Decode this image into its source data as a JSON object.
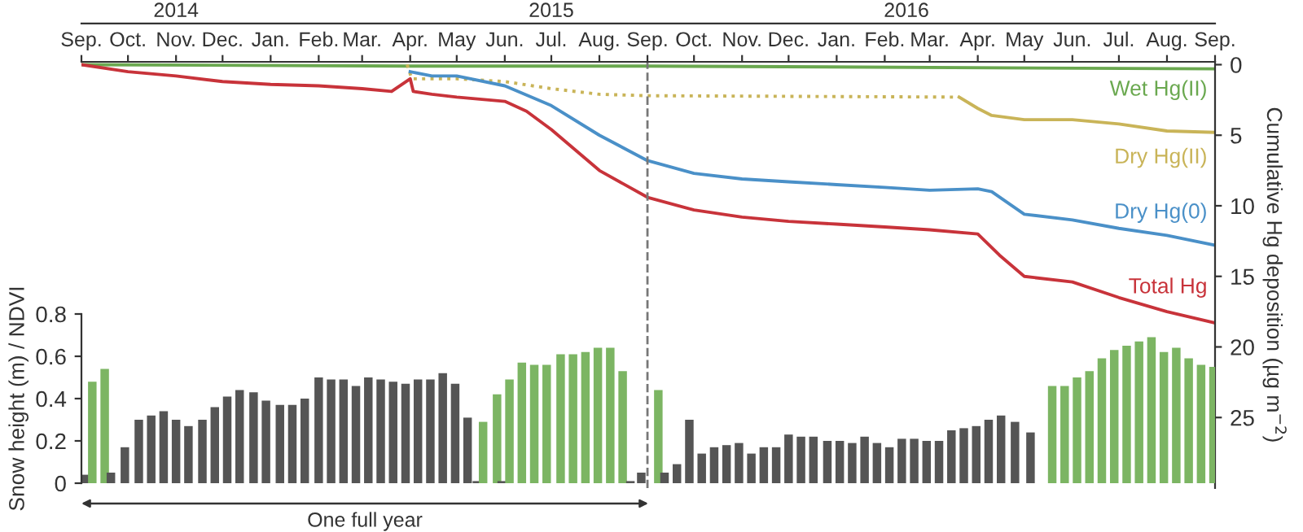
{
  "chart_data": [
    {
      "type": "line",
      "ylabel": "Cumulative Hg deposition (µg m$^{−2}$)",
      "xlim": [
        "2014-09-01",
        "2016-09-01"
      ],
      "ylim": [
        30,
        -0.2
      ],
      "yticks": [
        0,
        5,
        10,
        15,
        20,
        25
      ],
      "xticks": [
        {
          "value": "2014-09-01",
          "label": "Sep."
        },
        {
          "value": "2014-10-01",
          "label": "Oct."
        },
        {
          "value": "2014-11-01",
          "label": "Nov."
        },
        {
          "value": "2014-12-01",
          "label": "Dec."
        },
        {
          "value": "2015-01-01",
          "label": "Jan."
        },
        {
          "value": "2015-02-01",
          "label": "Feb."
        },
        {
          "value": "2015-03-01",
          "label": "Mar."
        },
        {
          "value": "2015-04-01",
          "label": "Apr."
        },
        {
          "value": "2015-05-01",
          "label": "May"
        },
        {
          "value": "2015-06-01",
          "label": "Jun."
        },
        {
          "value": "2015-07-01",
          "label": "Jul."
        },
        {
          "value": "2015-08-01",
          "label": "Aug."
        },
        {
          "value": "2015-09-01",
          "label": "Sep."
        },
        {
          "value": "2015-10-01",
          "label": "Oct."
        },
        {
          "value": "2015-11-01",
          "label": "Nov."
        },
        {
          "value": "2015-12-01",
          "label": "Dec."
        },
        {
          "value": "2016-01-01",
          "label": "Jan."
        },
        {
          "value": "2016-02-01",
          "label": "Feb."
        },
        {
          "value": "2016-03-01",
          "label": "Mar."
        },
        {
          "value": "2016-04-01",
          "label": "Apr."
        },
        {
          "value": "2016-05-01",
          "label": "May"
        },
        {
          "value": "2016-06-01",
          "label": "Jun."
        },
        {
          "value": "2016-07-01",
          "label": "Jul."
        },
        {
          "value": "2016-08-01",
          "label": "Aug."
        },
        {
          "value": "2016-09-01",
          "label": "Sep."
        }
      ],
      "x2lim": [
        "2014-09-01",
        "2016-09-01"
      ],
      "x2ticks": [
        {
          "value": "2014-11-01",
          "label": "2014"
        },
        {
          "value": "2015-07-01",
          "label": "2015"
        },
        {
          "value": "2016-02-15",
          "label": "2016"
        }
      ],
      "line_style": "solid",
      "ref_lines": [
        {
          "axis": "x",
          "value": "2015-09-01",
          "label": null,
          "color": "#777777",
          "line_style": "dashed"
        }
      ],
      "series": [
        {
          "name": "Wet Hg(II)",
          "color": "#6aa84f",
          "x": [
            "2014-09-01",
            "2015-04-01",
            "2015-09-01",
            "2016-09-01"
          ],
          "values": [
            0,
            0.1,
            0.1,
            0.3
          ]
        },
        {
          "color": "#c9b458",
          "line_style": "dotted",
          "x": [
            "2015-03-30",
            "2015-04-02",
            "2015-05-01",
            "2015-06-01",
            "2015-07-01",
            "2015-08-01",
            "2015-09-01",
            "2016-03-20"
          ],
          "values": [
            0,
            1.0,
            1.0,
            1.2,
            1.7,
            2.1,
            2.2,
            2.3
          ]
        },
        {
          "name": "Dry Hg(II)",
          "color": "#c9b458",
          "x": [
            "2016-03-20",
            "2016-04-01",
            "2016-04-10",
            "2016-05-01",
            "2016-06-01",
            "2016-07-01",
            "2016-08-01",
            "2016-09-01"
          ],
          "values": [
            2.3,
            3.1,
            3.6,
            3.9,
            3.9,
            4.2,
            4.7,
            4.8
          ]
        },
        {
          "name": "Dry Hg(0)",
          "color": "#4a90c8",
          "x": [
            "2015-04-01",
            "2015-04-15",
            "2015-05-01",
            "2015-06-01",
            "2015-07-01",
            "2015-08-01",
            "2015-09-01",
            "2015-10-01",
            "2015-11-01",
            "2015-12-01",
            "2016-01-01",
            "2016-02-01",
            "2016-03-01",
            "2016-04-01",
            "2016-04-10",
            "2016-05-01",
            "2016-06-01",
            "2016-07-01",
            "2016-08-01",
            "2016-09-01"
          ],
          "values": [
            0.5,
            0.8,
            0.8,
            1.5,
            2.9,
            5.0,
            6.8,
            7.7,
            8.1,
            8.3,
            8.5,
            8.7,
            8.9,
            8.8,
            9.0,
            10.6,
            11.0,
            11.6,
            12.1,
            12.8
          ]
        },
        {
          "name": "Total Hg",
          "color": "#c8333a",
          "x": [
            "2014-09-01",
            "2014-10-01",
            "2014-11-01",
            "2014-12-01",
            "2015-01-01",
            "2015-02-01",
            "2015-03-01",
            "2015-03-20",
            "2015-04-01",
            "2015-04-03",
            "2015-04-15",
            "2015-05-01",
            "2015-06-01",
            "2015-06-15",
            "2015-07-01",
            "2015-08-01",
            "2015-09-01",
            "2015-10-01",
            "2015-11-01",
            "2015-12-01",
            "2016-01-01",
            "2016-02-01",
            "2016-03-01",
            "2016-04-01",
            "2016-04-15",
            "2016-05-01",
            "2016-06-01",
            "2016-07-01",
            "2016-08-01",
            "2016-09-01"
          ],
          "values": [
            0,
            0.5,
            0.8,
            1.2,
            1.4,
            1.5,
            1.7,
            1.9,
            1.0,
            1.9,
            2.1,
            2.3,
            2.6,
            3.3,
            4.6,
            7.5,
            9.4,
            10.3,
            10.8,
            11.1,
            11.3,
            11.5,
            11.7,
            12.0,
            13.5,
            15.0,
            15.4,
            16.5,
            17.5,
            18.3
          ]
        }
      ]
    },
    {
      "type": "bar",
      "ylabel": "Snow height (m) / NDVI",
      "tick_labels": "y",
      "xlim": [
        "2014-09-01",
        "2016-09-01"
      ],
      "ylim": [
        0,
        0.8
      ],
      "yticks": [
        0,
        0.2,
        0.4,
        0.6,
        0.8
      ],
      "annotations": [
        "One full year"
      ],
      "x": [
        "2014-09-04",
        "2014-09-08",
        "2014-09-16",
        "2014-09-20",
        "2014-09-29",
        "2014-10-08",
        "2014-10-16",
        "2014-10-24",
        "2014-11-01",
        "2014-11-09",
        "2014-11-18",
        "2014-11-26",
        "2014-12-04",
        "2014-12-12",
        "2014-12-21",
        "2014-12-29",
        "2015-01-07",
        "2015-01-15",
        "2015-01-23",
        "2015-02-01",
        "2015-02-09",
        "2015-02-17",
        "2015-02-25",
        "2015-03-05",
        "2015-03-13",
        "2015-03-21",
        "2015-03-29",
        "2015-04-06",
        "2015-04-14",
        "2015-04-22",
        "2015-04-30",
        "2015-05-08",
        "2015-05-14",
        "2015-05-18",
        "2015-05-27",
        "2015-05-30",
        "2015-06-04",
        "2015-06-12",
        "2015-06-20",
        "2015-06-28",
        "2015-07-07",
        "2015-07-15",
        "2015-07-23",
        "2015-07-31",
        "2015-08-08",
        "2015-08-16",
        "2015-08-21",
        "2015-08-28",
        "2015-09-08",
        "2015-09-12",
        "2015-09-20",
        "2015-09-28",
        "2015-10-06",
        "2015-10-14",
        "2015-10-22",
        "2015-10-30",
        "2015-11-07",
        "2015-11-15",
        "2015-11-23",
        "2015-12-01",
        "2015-12-09",
        "2015-12-17",
        "2015-12-26",
        "2016-01-03",
        "2016-01-11",
        "2016-01-19",
        "2016-01-27",
        "2016-02-04",
        "2016-02-12",
        "2016-02-20",
        "2016-02-28",
        "2016-03-07",
        "2016-03-15",
        "2016-03-23",
        "2016-03-31",
        "2016-04-08",
        "2016-04-16",
        "2016-04-25",
        "2016-05-05",
        "2016-05-19",
        "2016-05-27",
        "2016-06-04",
        "2016-06-12",
        "2016-06-20",
        "2016-06-28",
        "2016-07-06",
        "2016-07-14",
        "2016-07-22",
        "2016-07-30",
        "2016-08-07",
        "2016-08-15",
        "2016-08-23",
        "2016-08-31"
      ],
      "values": [
        0.04,
        0.48,
        0.54,
        0.05,
        0.17,
        0.3,
        0.32,
        0.34,
        0.3,
        0.27,
        0.3,
        0.36,
        0.41,
        0.44,
        0.43,
        0.39,
        0.37,
        0.37,
        0.4,
        0.5,
        0.49,
        0.49,
        0.46,
        0.5,
        0.49,
        0.48,
        0.47,
        0.49,
        0.49,
        0.52,
        0.47,
        0.31,
        0.01,
        0.29,
        0.42,
        0.01,
        0.49,
        0.57,
        0.56,
        0.56,
        0.61,
        0.61,
        0.62,
        0.64,
        0.64,
        0.53,
        0.01,
        0.05,
        0.44,
        0.05,
        0.09,
        0.3,
        0.14,
        0.17,
        0.18,
        0.19,
        0.14,
        0.17,
        0.17,
        0.23,
        0.22,
        0.22,
        0.2,
        0.2,
        0.19,
        0.22,
        0.19,
        0.17,
        0.21,
        0.21,
        0.2,
        0.2,
        0.25,
        0.26,
        0.27,
        0.3,
        0.32,
        0.29,
        0.24,
        0.46,
        0.46,
        0.5,
        0.53,
        0.59,
        0.63,
        0.65,
        0.67,
        0.69,
        0.62,
        0.64,
        0.59,
        0.56,
        0.55
      ],
      "colors": [
        "#555555",
        "#7cb563",
        "#7cb563",
        "#555555",
        "#555555",
        "#555555",
        "#555555",
        "#555555",
        "#555555",
        "#555555",
        "#555555",
        "#555555",
        "#555555",
        "#555555",
        "#555555",
        "#555555",
        "#555555",
        "#555555",
        "#555555",
        "#555555",
        "#555555",
        "#555555",
        "#555555",
        "#555555",
        "#555555",
        "#555555",
        "#555555",
        "#555555",
        "#555555",
        "#555555",
        "#555555",
        "#555555",
        "#555555",
        "#7cb563",
        "#7cb563",
        "#555555",
        "#7cb563",
        "#7cb563",
        "#7cb563",
        "#7cb563",
        "#7cb563",
        "#7cb563",
        "#7cb563",
        "#7cb563",
        "#7cb563",
        "#7cb563",
        "#555555",
        "#555555",
        "#7cb563",
        "#555555",
        "#555555",
        "#555555",
        "#555555",
        "#555555",
        "#555555",
        "#555555",
        "#555555",
        "#555555",
        "#555555",
        "#555555",
        "#555555",
        "#555555",
        "#555555",
        "#555555",
        "#555555",
        "#555555",
        "#555555",
        "#555555",
        "#555555",
        "#555555",
        "#555555",
        "#555555",
        "#555555",
        "#555555",
        "#555555",
        "#555555",
        "#555555",
        "#555555",
        "#555555",
        "#7cb563",
        "#7cb563",
        "#7cb563",
        "#7cb563",
        "#7cb563",
        "#7cb563",
        "#7cb563",
        "#7cb563",
        "#7cb563",
        "#7cb563",
        "#7cb563",
        "#7cb563",
        "#7cb563",
        "#7cb563"
      ]
    }
  ]
}
